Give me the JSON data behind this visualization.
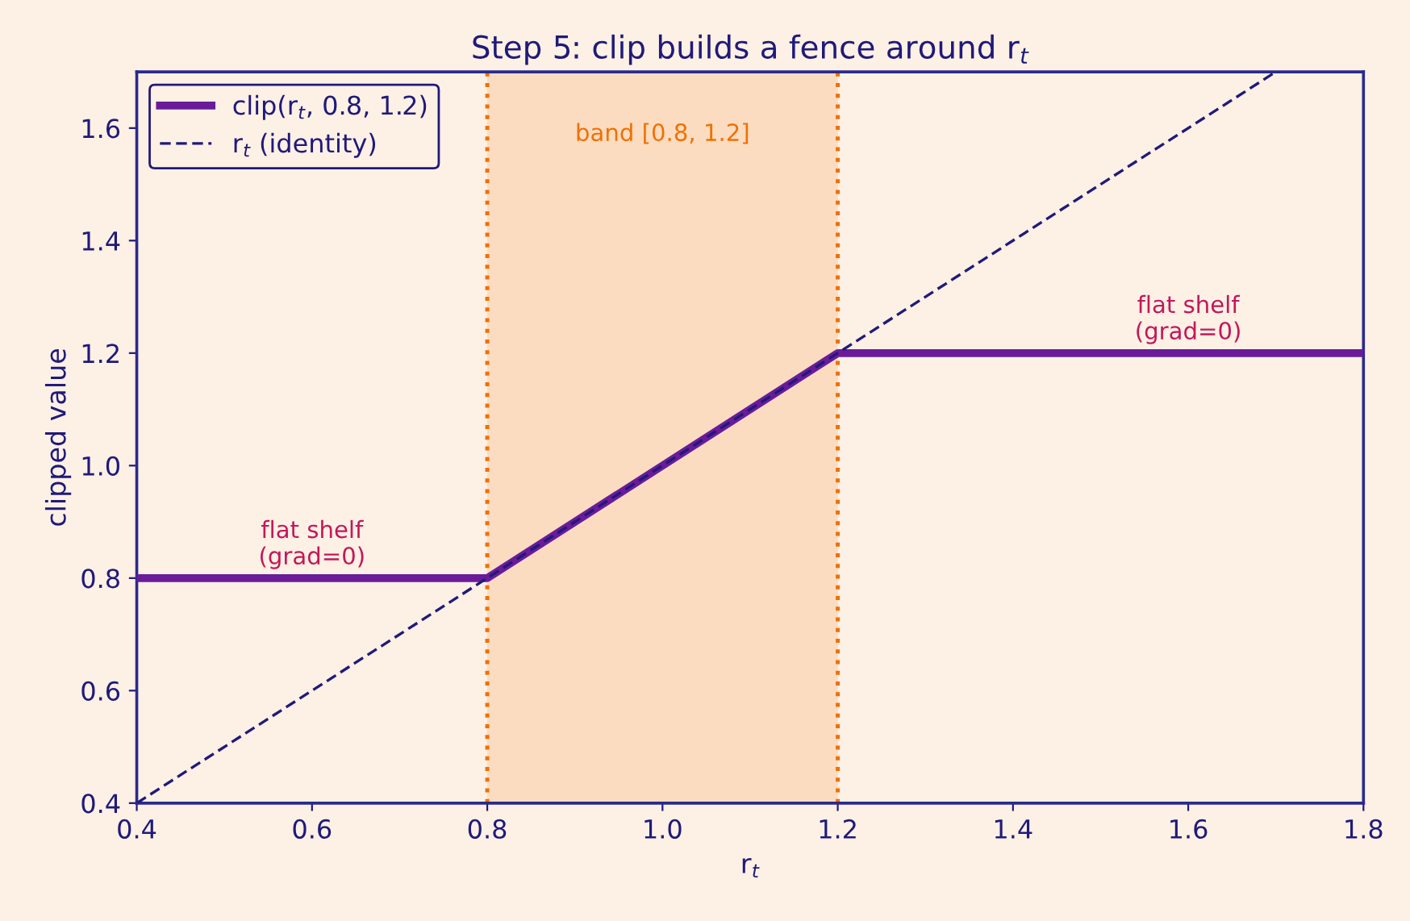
{
  "chart_data": {
    "type": "line",
    "title": "Step 5: clip builds a fence around r$_{t}$",
    "xlabel": "r$_{t}$",
    "ylabel": "clipped value",
    "series": [
      {
        "name": "clip(r$_{t}$, 0.8, 1.2)",
        "color": "#6a1b9a",
        "x": [
          0.4,
          0.8,
          1.2,
          1.8
        ],
        "values": [
          0.8,
          0.8,
          1.2,
          1.2
        ],
        "line_style": "solid"
      },
      {
        "name": "r$_{t}$ (identity)",
        "color": "#1f1a7a",
        "x": [
          0.4,
          1.7
        ],
        "values": [
          0.4,
          1.7
        ],
        "line_style": "dashed"
      }
    ],
    "xlim": [
      0.4,
      1.8
    ],
    "ylim": [
      0.4,
      1.7
    ],
    "xticks": [
      0.4,
      0.6,
      0.8,
      {
        "value": 1,
        "label": "1.0"
      },
      1.2,
      1.4,
      1.6,
      1.8
    ],
    "yticks": [
      0.4,
      0.6,
      0.8,
      {
        "value": 1,
        "label": "1.0"
      },
      1.2,
      1.4,
      1.6
    ],
    "bands": [
      {
        "axis": "x",
        "from": 0.8,
        "to": 1.2,
        "label": "band [0.8, 1.2]",
        "color": "#fbdcc0"
      }
    ],
    "ref_lines": [
      {
        "axis": "x",
        "value": 0.8,
        "color": "#f07000",
        "line_style": "dotted"
      },
      {
        "axis": "x",
        "value": 1.2,
        "color": "#f07000",
        "line_style": "dotted"
      }
    ],
    "annotations": [
      {
        "text": "flat shelf\n(grad=0)",
        "x": 0.6,
        "y": 0.8
      },
      {
        "text": "flat shelf\n(grad=0)",
        "x": 1.6,
        "y": 1.2
      }
    ],
    "legend": "top left",
    "grid": false,
    "marker": "none"
  }
}
